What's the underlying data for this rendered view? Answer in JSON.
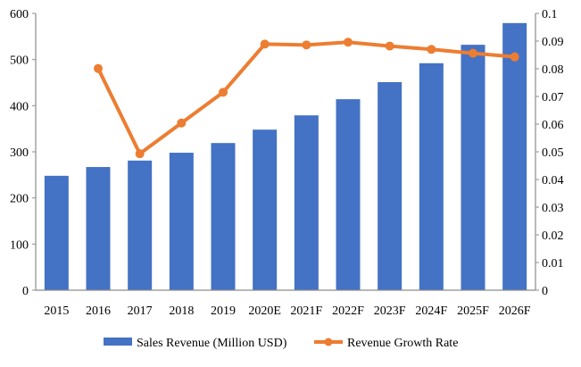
{
  "chart_data": {
    "type": "bar+line",
    "categories": [
      "2015",
      "2016",
      "2017",
      "2018",
      "2019",
      "2020E",
      "2021F",
      "2022F",
      "2023F",
      "2024F",
      "2025F",
      "2026F"
    ],
    "series": [
      {
        "name": "Sales Revenue (Million USD)",
        "type": "bar",
        "axis": "left",
        "color": "#4472C4",
        "values": [
          248,
          267,
          281,
          298,
          319,
          348,
          379,
          414,
          451,
          492,
          532,
          579
        ]
      },
      {
        "name": "Revenue Growth Rate",
        "type": "line",
        "axis": "right",
        "color": "#ED7D31",
        "values": [
          null,
          0.0801,
          0.0493,
          0.0604,
          0.0715,
          0.0889,
          0.0886,
          0.0896,
          0.0882,
          0.087,
          0.0856,
          0.0843
        ]
      }
    ],
    "left_axis": {
      "range": [
        0,
        600
      ],
      "ticks": [
        "0",
        "100",
        "200",
        "300",
        "400",
        "500",
        "600"
      ]
    },
    "right_axis": {
      "range": [
        0,
        0.1
      ],
      "ticks": [
        "0",
        "0.01",
        "0.02",
        "0.03",
        "0.04",
        "0.05",
        "0.06",
        "0.07",
        "0.08",
        "0.09",
        "0.1"
      ]
    },
    "grid": false,
    "legend_position": "bottom"
  }
}
